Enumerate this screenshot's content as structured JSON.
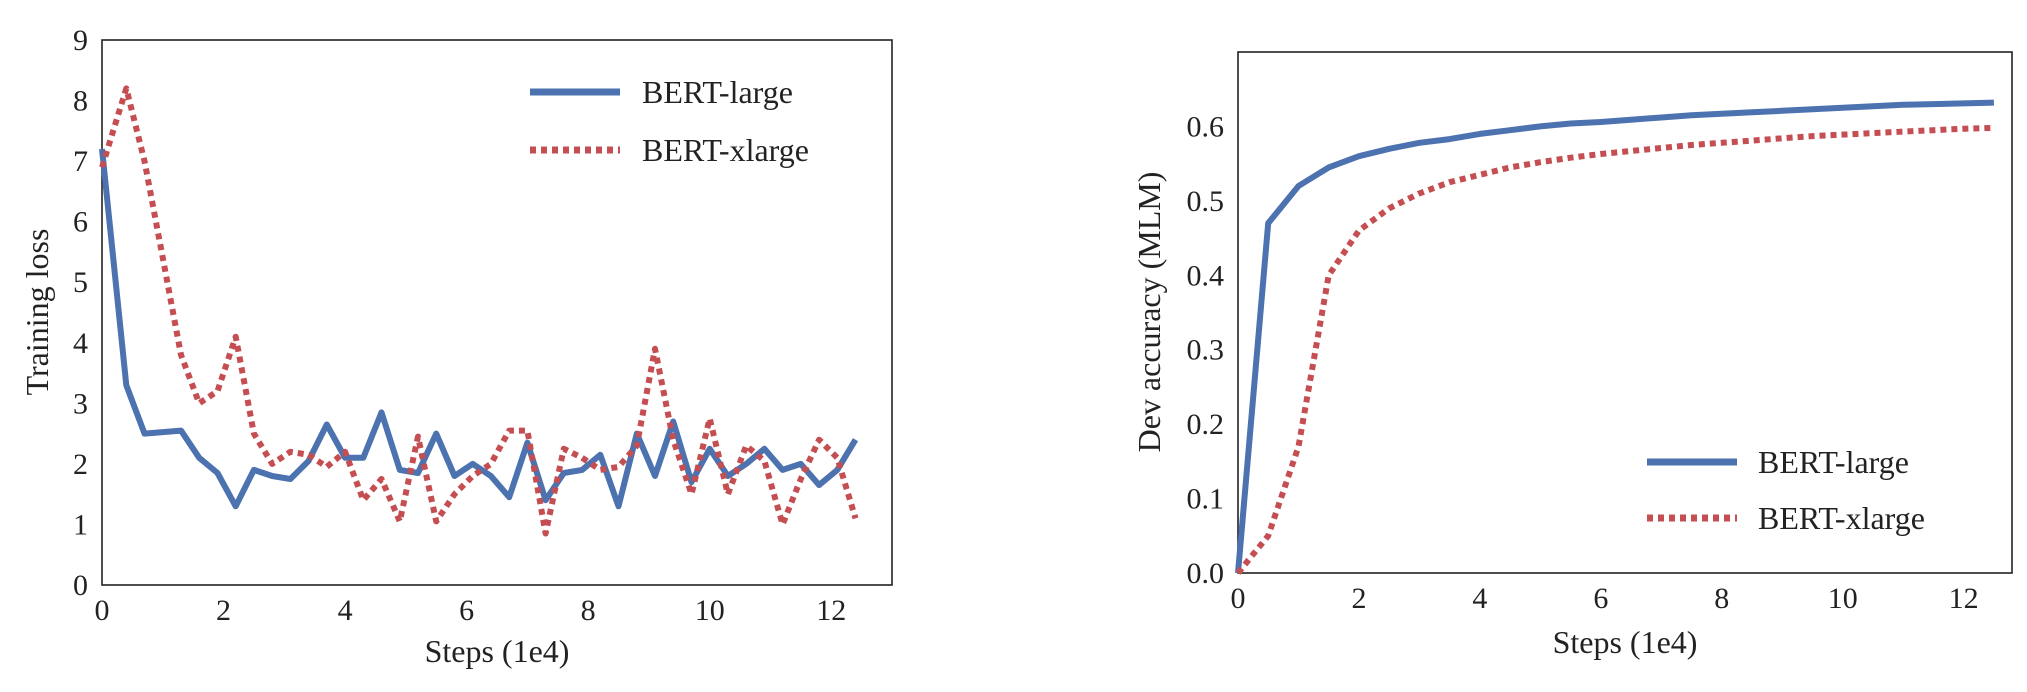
{
  "colors": {
    "bert_large": "#4C72B0",
    "bert_xlarge": "#C44E52"
  },
  "chart_data": [
    {
      "type": "line",
      "title": "",
      "xlabel": "Steps (1e4)",
      "ylabel": "Training loss",
      "xlim": [
        0,
        13
      ],
      "ylim": [
        0,
        9
      ],
      "xticks": [
        "0",
        "2",
        "4",
        "6",
        "8",
        "10",
        "12"
      ],
      "yticks": [
        "0",
        "1",
        "2",
        "3",
        "4",
        "5",
        "6",
        "7",
        "8",
        "9"
      ],
      "grid": false,
      "legend_position": "top-right",
      "series": [
        {
          "name": "BERT-large",
          "style": "solid",
          "x": [
            0.0,
            0.4,
            0.7,
            1.3,
            1.6,
            1.9,
            2.2,
            2.5,
            2.8,
            3.1,
            3.4,
            3.7,
            4.0,
            4.3,
            4.6,
            4.9,
            5.2,
            5.5,
            5.8,
            6.1,
            6.4,
            6.7,
            7.0,
            7.3,
            7.6,
            7.9,
            8.2,
            8.5,
            8.8,
            9.1,
            9.4,
            9.7,
            10.0,
            10.3,
            10.6,
            10.9,
            11.2,
            11.5,
            11.8,
            12.1,
            12.4
          ],
          "y": [
            7.2,
            3.3,
            2.5,
            2.55,
            2.1,
            1.85,
            1.3,
            1.9,
            1.8,
            1.75,
            2.05,
            2.65,
            2.1,
            2.1,
            2.85,
            1.9,
            1.85,
            2.5,
            1.8,
            2.0,
            1.8,
            1.45,
            2.35,
            1.4,
            1.85,
            1.9,
            2.15,
            1.3,
            2.5,
            1.8,
            2.7,
            1.7,
            2.25,
            1.8,
            2.0,
            2.25,
            1.9,
            2.0,
            1.65,
            1.9,
            2.4
          ]
        },
        {
          "name": "BERT-xlarge",
          "style": "dashed",
          "x": [
            0.0,
            0.4,
            0.7,
            1.0,
            1.3,
            1.6,
            1.9,
            2.2,
            2.5,
            2.8,
            3.1,
            3.4,
            3.7,
            4.0,
            4.3,
            4.6,
            4.9,
            5.2,
            5.5,
            5.8,
            6.1,
            6.4,
            6.7,
            7.0,
            7.3,
            7.6,
            7.9,
            8.2,
            8.5,
            8.8,
            9.1,
            9.4,
            9.7,
            10.0,
            10.3,
            10.6,
            10.9,
            11.2,
            11.5,
            11.8,
            12.1,
            12.4
          ],
          "y": [
            6.9,
            8.2,
            7.0,
            5.4,
            3.8,
            3.0,
            3.2,
            4.1,
            2.5,
            2.0,
            2.2,
            2.15,
            1.95,
            2.2,
            1.4,
            1.75,
            1.05,
            2.45,
            1.05,
            1.5,
            1.8,
            2.0,
            2.55,
            2.55,
            0.85,
            2.25,
            2.1,
            1.9,
            1.95,
            2.3,
            3.9,
            2.4,
            1.5,
            2.75,
            1.5,
            2.3,
            2.05,
            1.0,
            1.75,
            2.4,
            2.1,
            1.1
          ]
        }
      ]
    },
    {
      "type": "line",
      "title": "",
      "xlabel": "Steps (1e4)",
      "ylabel": "Dev accuracy (MLM)",
      "xlim": [
        0,
        12.8
      ],
      "ylim": [
        0,
        0.7
      ],
      "xticks": [
        "0",
        "2",
        "4",
        "6",
        "8",
        "10",
        "12"
      ],
      "yticks": [
        "0.0",
        "0.1",
        "0.2",
        "0.3",
        "0.4",
        "0.5",
        "0.6"
      ],
      "grid": false,
      "legend_position": "bottom-right",
      "series": [
        {
          "name": "BERT-large",
          "style": "solid",
          "x": [
            0.0,
            0.5,
            1.0,
            1.5,
            2.0,
            2.5,
            3.0,
            3.5,
            4.0,
            4.5,
            5.0,
            5.5,
            6.0,
            6.5,
            7.0,
            7.5,
            8.0,
            8.5,
            9.0,
            9.5,
            10.0,
            10.5,
            11.0,
            11.5,
            12.0,
            12.5
          ],
          "y": [
            0.0,
            0.47,
            0.52,
            0.545,
            0.56,
            0.57,
            0.578,
            0.583,
            0.59,
            0.595,
            0.6,
            0.604,
            0.606,
            0.609,
            0.612,
            0.615,
            0.617,
            0.619,
            0.621,
            0.623,
            0.625,
            0.627,
            0.629,
            0.63,
            0.631,
            0.632
          ]
        },
        {
          "name": "BERT-xlarge",
          "style": "dashed",
          "x": [
            0.0,
            0.5,
            1.0,
            1.5,
            2.0,
            2.5,
            3.0,
            3.5,
            4.0,
            4.5,
            5.0,
            5.5,
            6.0,
            6.5,
            7.0,
            7.5,
            8.0,
            8.5,
            9.0,
            9.5,
            10.0,
            10.5,
            11.0,
            11.5,
            12.0,
            12.5
          ],
          "y": [
            0.0,
            0.05,
            0.17,
            0.4,
            0.46,
            0.49,
            0.51,
            0.525,
            0.535,
            0.545,
            0.552,
            0.558,
            0.563,
            0.567,
            0.571,
            0.575,
            0.578,
            0.581,
            0.584,
            0.587,
            0.589,
            0.591,
            0.593,
            0.595,
            0.597,
            0.598
          ]
        }
      ]
    }
  ]
}
